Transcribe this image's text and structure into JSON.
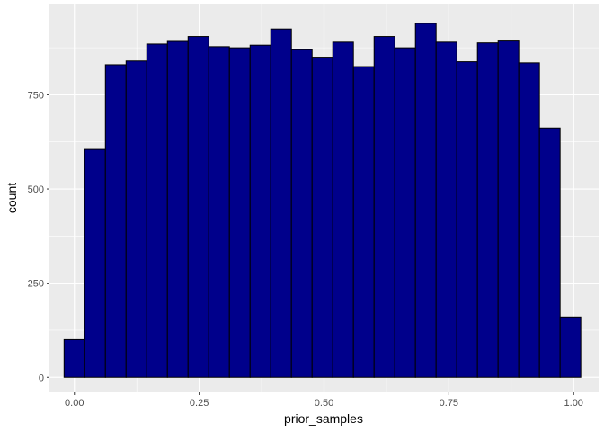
{
  "chart_data": {
    "type": "bar",
    "xlabel": "prior_samples",
    "ylabel": "count",
    "xlim": [
      -0.05,
      1.05
    ],
    "ylim": [
      -40,
      990
    ],
    "x_ticks": [
      0.0,
      0.25,
      0.5,
      0.75,
      1.0
    ],
    "x_tick_labels": [
      "0.00",
      "0.25",
      "0.50",
      "0.75",
      "1.00"
    ],
    "y_ticks": [
      0,
      250,
      500,
      750
    ],
    "y_tick_labels": [
      "0",
      "250",
      "500",
      "750"
    ],
    "grid": true,
    "bin_width": 0.0414,
    "bin_start": -0.0207,
    "values": [
      100,
      605,
      830,
      840,
      885,
      892,
      905,
      878,
      875,
      882,
      925,
      870,
      850,
      890,
      825,
      905,
      875,
      940,
      890,
      838,
      888,
      893,
      835,
      662,
      160
    ],
    "colors": {
      "bar_fill": "#00008b",
      "bar_stroke": "#000000",
      "panel_bg": "#ebebeb",
      "grid_major": "#ffffff",
      "tick_text": "#4d4d4d",
      "tick_mark": "#333333"
    }
  }
}
